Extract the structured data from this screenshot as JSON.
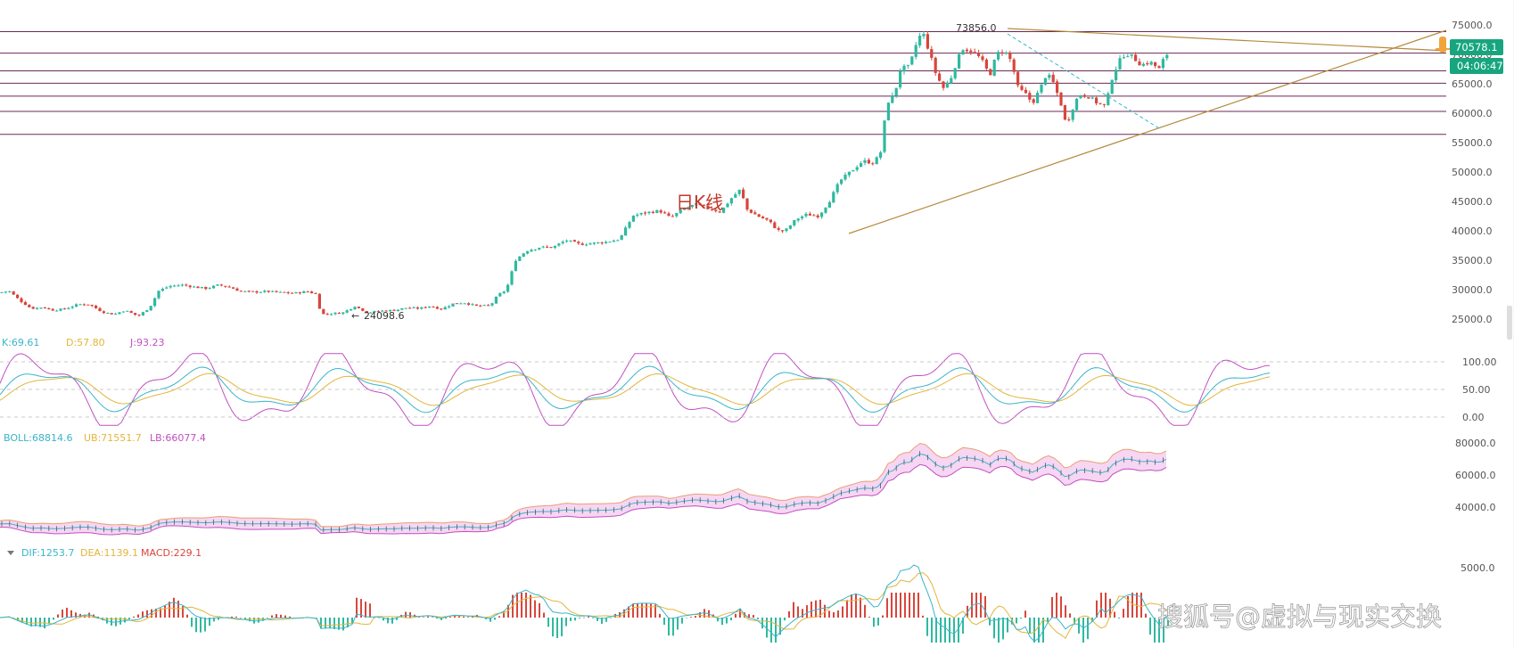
{
  "app": {
    "chart_title_note": "日K线",
    "watermark": "搜狐号@虚拟与现实交换",
    "colors": {
      "up": "#2fb9a0",
      "down": "#d8463c",
      "k_line": "#39b5c9",
      "d_line": "#e2b53a",
      "j_line": "#c14fc1",
      "trend": "#b58a3c",
      "h_line": "#6b2a5a",
      "price_badge": "#17a57f",
      "boll_fill": "#f6d6f3"
    }
  },
  "price_panel": {
    "high_label": "73856.0",
    "low_label": "24098.6",
    "low_arrow": "←",
    "current_price": "70578.1",
    "countdown": "04:06:47",
    "yaxis_ticks": [
      "75000.0",
      "70000.0",
      "65000.0",
      "60000.0",
      "55000.0",
      "50000.0",
      "45000.0",
      "40000.0",
      "35000.0",
      "30000.0",
      "25000.0"
    ],
    "horizontal_levels": [
      73856,
      70200,
      67200,
      65100,
      62900,
      60300,
      56400
    ]
  },
  "kdj_panel": {
    "k_label": "K:69.61",
    "d_label": "D:57.80",
    "j_label": "J:93.23",
    "yaxis_ticks": [
      "100.00",
      "50.00",
      "0.00"
    ]
  },
  "boll_panel": {
    "boll_label": "BOLL:68814.6",
    "ub_label": "UB:71551.7",
    "lb_label": "LB:66077.4",
    "yaxis_ticks": [
      "80000.0",
      "60000.0",
      "40000.0"
    ]
  },
  "macd_panel": {
    "toggle_icon": "caret-down-icon",
    "dif_label": "DIF:1253.7",
    "dea_label": "DEA:1139.1",
    "macd_label": "MACD:229.1",
    "yaxis_ticks": [
      "5000.0"
    ]
  },
  "chart_data": {
    "type": "candlestick",
    "description_series": "Daily close anchors (USD), read approximately from price axis",
    "anchors": [
      [
        0,
        29500
      ],
      [
        10,
        29800
      ],
      [
        22,
        28200
      ],
      [
        35,
        26800
      ],
      [
        48,
        27000
      ],
      [
        60,
        26500
      ],
      [
        72,
        26700
      ],
      [
        88,
        27500
      ],
      [
        100,
        27500
      ],
      [
        115,
        26200
      ],
      [
        128,
        25800
      ],
      [
        140,
        26500
      ],
      [
        155,
        25500
      ],
      [
        168,
        27000
      ],
      [
        178,
        29800
      ],
      [
        190,
        30600
      ],
      [
        205,
        30800
      ],
      [
        220,
        30400
      ],
      [
        232,
        30200
      ],
      [
        245,
        30800
      ],
      [
        258,
        30400
      ],
      [
        270,
        29700
      ],
      [
        285,
        29600
      ],
      [
        300,
        29700
      ],
      [
        315,
        29500
      ],
      [
        330,
        29400
      ],
      [
        345,
        29700
      ],
      [
        355,
        29200
      ],
      [
        360,
        25800
      ],
      [
        370,
        25900
      ],
      [
        385,
        26100
      ],
      [
        398,
        27200
      ],
      [
        412,
        26100
      ],
      [
        428,
        26400
      ],
      [
        442,
        26500
      ],
      [
        455,
        26900
      ],
      [
        470,
        26800
      ],
      [
        482,
        27200
      ],
      [
        495,
        26700
      ],
      [
        508,
        27600
      ],
      [
        520,
        27800
      ],
      [
        535,
        27200
      ],
      [
        550,
        27300
      ],
      [
        558,
        29000
      ],
      [
        568,
        30000
      ],
      [
        578,
        35000
      ],
      [
        590,
        36600
      ],
      [
        605,
        37200
      ],
      [
        620,
        37200
      ],
      [
        635,
        38400
      ],
      [
        650,
        37700
      ],
      [
        665,
        37900
      ],
      [
        680,
        38100
      ],
      [
        695,
        38600
      ],
      [
        710,
        42600
      ],
      [
        725,
        43100
      ],
      [
        740,
        43400
      ],
      [
        752,
        42200
      ],
      [
        765,
        43600
      ],
      [
        780,
        44500
      ],
      [
        795,
        43800
      ],
      [
        808,
        43200
      ],
      [
        820,
        45500
      ],
      [
        830,
        47000
      ],
      [
        838,
        43600
      ],
      [
        850,
        42500
      ],
      [
        862,
        41700
      ],
      [
        872,
        40100
      ],
      [
        880,
        39900
      ],
      [
        893,
        42000
      ],
      [
        905,
        42800
      ],
      [
        918,
        42500
      ],
      [
        930,
        45000
      ],
      [
        942,
        48500
      ],
      [
        955,
        50200
      ],
      [
        968,
        51900
      ],
      [
        980,
        51500
      ],
      [
        988,
        53500
      ],
      [
        992,
        58500
      ],
      [
        997,
        62500
      ],
      [
        1003,
        63000
      ],
      [
        1010,
        67600
      ],
      [
        1020,
        67900
      ],
      [
        1030,
        73000
      ],
      [
        1036,
        73300
      ],
      [
        1042,
        70500
      ],
      [
        1050,
        66500
      ],
      [
        1058,
        64300
      ],
      [
        1066,
        65800
      ],
      [
        1074,
        69200
      ],
      [
        1080,
        71000
      ],
      [
        1090,
        70500
      ],
      [
        1100,
        69300
      ],
      [
        1110,
        66400
      ],
      [
        1118,
        70100
      ],
      [
        1126,
        70700
      ],
      [
        1134,
        68900
      ],
      [
        1142,
        64200
      ],
      [
        1150,
        63300
      ],
      [
        1158,
        61700
      ],
      [
        1166,
        64000
      ],
      [
        1174,
        66800
      ],
      [
        1182,
        65000
      ],
      [
        1190,
        61500
      ],
      [
        1196,
        57800
      ],
      [
        1202,
        60500
      ],
      [
        1210,
        63200
      ],
      [
        1220,
        62900
      ],
      [
        1230,
        61800
      ],
      [
        1240,
        61200
      ],
      [
        1248,
        66500
      ],
      [
        1256,
        69000
      ],
      [
        1262,
        70200
      ],
      [
        1270,
        69600
      ],
      [
        1280,
        68200
      ],
      [
        1290,
        68700
      ],
      [
        1300,
        67500
      ],
      [
        1306,
        69500
      ],
      [
        1312,
        70578
      ]
    ],
    "period": "1D",
    "ylim": [
      22000,
      76000
    ],
    "annotations": [
      {
        "text": "73856.0",
        "type": "high"
      },
      {
        "text": "24098.6",
        "type": "low"
      }
    ]
  }
}
